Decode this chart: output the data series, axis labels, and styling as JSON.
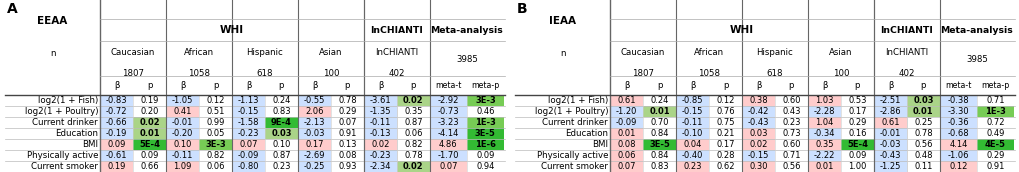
{
  "panel_A": {
    "label": "A",
    "outcome": "EEAA",
    "rows": [
      "log2(1 + Fish)",
      "log2(1 + Poultry)",
      "Current drinker",
      "Education",
      "BMI",
      "Physically active",
      "Current smoker"
    ],
    "cols_beta_p": [
      {
        "group": "Caucasian",
        "n": "1807",
        "betas": [
          -0.83,
          -0.72,
          -0.66,
          -0.19,
          0.09,
          -0.61,
          0.19
        ],
        "ps": [
          0.19,
          0.2,
          0.02,
          0.01,
          "5E-4",
          0.09,
          0.66
        ],
        "is_meta": false
      },
      {
        "group": "African",
        "n": "1058",
        "betas": [
          -1.05,
          0.41,
          -0.01,
          -0.2,
          0.1,
          -0.11,
          1.09
        ],
        "ps": [
          0.12,
          0.51,
          0.99,
          0.05,
          "3E-3",
          0.82,
          0.06
        ],
        "is_meta": false
      },
      {
        "group": "Hispanic",
        "n": "618",
        "betas": [
          -1.13,
          -0.15,
          -1.58,
          -0.23,
          0.07,
          -0.09,
          -0.8
        ],
        "ps": [
          0.24,
          0.83,
          "9E-4",
          0.03,
          0.1,
          0.87,
          0.23
        ],
        "is_meta": false
      },
      {
        "group": "Asian",
        "n": "100",
        "betas": [
          -0.55,
          2.06,
          -2.13,
          -0.03,
          0.17,
          -2.69,
          -0.25
        ],
        "ps": [
          0.78,
          0.29,
          0.07,
          0.91,
          0.13,
          0.08,
          0.93
        ],
        "is_meta": false
      },
      {
        "group": "InCHIANTI",
        "n": "402",
        "betas": [
          -3.61,
          -1.35,
          -0.11,
          -0.13,
          0.02,
          -0.23,
          -2.34
        ],
        "ps": [
          0.02,
          0.35,
          0.87,
          0.06,
          0.82,
          0.78,
          0.02
        ],
        "is_meta": false
      },
      {
        "group": "Meta-analysis",
        "n": "3985",
        "betas": [
          -2.92,
          -0.73,
          -3.23,
          -4.14,
          4.86,
          -1.7,
          0.07
        ],
        "ps": [
          "3E-3",
          0.46,
          "1E-3",
          "3E-5",
          "1E-6",
          0.09,
          0.94
        ],
        "is_meta": true
      }
    ]
  },
  "panel_B": {
    "label": "B",
    "outcome": "IEAA",
    "rows": [
      "log2(1 + Fish)",
      "log2(1 + Poultry)",
      "Current drinker",
      "Education",
      "BMI",
      "Physically active",
      "Current smoker"
    ],
    "cols_beta_p": [
      {
        "group": "Caucasian",
        "n": "1807",
        "betas": [
          0.61,
          -1.2,
          -0.09,
          0.01,
          0.08,
          0.06,
          0.07
        ],
        "ps": [
          0.24,
          0.01,
          0.7,
          0.84,
          "3E-5",
          0.84,
          0.83
        ],
        "is_meta": false
      },
      {
        "group": "African",
        "n": "1058",
        "betas": [
          -0.85,
          -0.15,
          -0.11,
          -0.1,
          0.04,
          -0.4,
          0.23
        ],
        "ps": [
          0.12,
          0.76,
          0.75,
          0.21,
          0.17,
          0.28,
          0.62
        ],
        "is_meta": false
      },
      {
        "group": "Hispanic",
        "n": "618",
        "betas": [
          0.38,
          -0.42,
          -0.43,
          0.03,
          0.02,
          -0.15,
          0.3
        ],
        "ps": [
          0.6,
          0.43,
          0.23,
          0.73,
          0.6,
          0.71,
          0.56
        ],
        "is_meta": false
      },
      {
        "group": "Asian",
        "n": "100",
        "betas": [
          1.03,
          -2.28,
          1.04,
          -0.34,
          0.35,
          -2.22,
          0.01
        ],
        "ps": [
          0.53,
          0.17,
          0.29,
          0.16,
          "5E-4",
          0.09,
          1.0
        ],
        "is_meta": false
      },
      {
        "group": "InCHIANTI",
        "n": "402",
        "betas": [
          -2.51,
          -2.86,
          0.61,
          -0.01,
          -0.03,
          -0.43,
          -1.25
        ],
        "ps": [
          0.03,
          0.01,
          0.25,
          0.78,
          0.56,
          0.48,
          0.11
        ],
        "is_meta": false
      },
      {
        "group": "Meta-analysis",
        "n": "3985",
        "betas": [
          -0.38,
          -3.3,
          -0.36,
          -0.68,
          4.14,
          -1.06,
          0.12
        ],
        "ps": [
          0.71,
          "1E-3",
          0.72,
          0.49,
          "4E-5",
          0.29,
          0.91
        ],
        "is_meta": true
      }
    ]
  },
  "font_size": 6.2,
  "header_font_size": 7.5
}
